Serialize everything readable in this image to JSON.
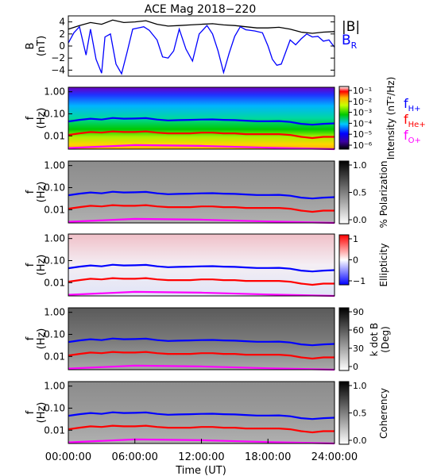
{
  "chart_data": {
    "type": "heatmap",
    "title": "ACE Mag 2018−220",
    "x": {
      "label": "Time (UT)",
      "range_hours": [
        0,
        24
      ],
      "ticks": [
        "00:00:00",
        "06:00:00",
        "12:00:00",
        "18:00:00",
        "24:00:00"
      ],
      "tick_hours": [
        0,
        6,
        12,
        18,
        24
      ]
    },
    "panels": [
      {
        "id": "b",
        "type": "line",
        "ylabel": [
          "B",
          "(nT)"
        ],
        "ylim": [
          -5,
          5
        ],
        "yticks": [
          "4",
          "2",
          "0",
          "−2",
          "−4"
        ],
        "ytick_values": [
          4,
          2,
          0,
          -2,
          -4
        ],
        "legend": [
          {
            "label": "|B|",
            "color": "#000000"
          },
          {
            "label": "B",
            "sub": "R",
            "color": "#0000ff"
          }
        ],
        "series": [
          {
            "name": "|B|",
            "color": "#000000",
            "points": [
              [
                0,
                2.8
              ],
              [
                1,
                3.4
              ],
              [
                2,
                3.9
              ],
              [
                3,
                3.6
              ],
              [
                4,
                4.3
              ],
              [
                5,
                3.9
              ],
              [
                6,
                4.0
              ],
              [
                7,
                4.2
              ],
              [
                8,
                3.6
              ],
              [
                9,
                3.3
              ],
              [
                10,
                3.4
              ],
              [
                11,
                3.5
              ],
              [
                12,
                3.6
              ],
              [
                13,
                3.7
              ],
              [
                14,
                3.5
              ],
              [
                15,
                3.4
              ],
              [
                16,
                3.2
              ],
              [
                17,
                3.0
              ],
              [
                18,
                3.0
              ],
              [
                19,
                3.1
              ],
              [
                20,
                2.8
              ],
              [
                21,
                2.3
              ],
              [
                22,
                2.1
              ],
              [
                23,
                2.3
              ],
              [
                24,
                2.4
              ]
            ]
          },
          {
            "name": "B_R",
            "color": "#0000ff",
            "points": [
              [
                0,
                0.5
              ],
              [
                0.5,
                2.2
              ],
              [
                1,
                3.2
              ],
              [
                1.6,
                -1.5
              ],
              [
                2,
                2.8
              ],
              [
                2.5,
                -2.2
              ],
              [
                3,
                -4.5
              ],
              [
                3.3,
                1.5
              ],
              [
                3.8,
                2.0
              ],
              [
                4.3,
                -3.0
              ],
              [
                4.8,
                -4.6
              ],
              [
                5.3,
                -1.0
              ],
              [
                5.8,
                2.8
              ],
              [
                6.3,
                3.0
              ],
              [
                6.8,
                3.2
              ],
              [
                7.3,
                2.6
              ],
              [
                8,
                1.0
              ],
              [
                8.5,
                -1.8
              ],
              [
                9,
                -2.0
              ],
              [
                9.5,
                -0.8
              ],
              [
                10,
                2.8
              ],
              [
                10.6,
                -0.5
              ],
              [
                11.2,
                -2.5
              ],
              [
                11.8,
                2.0
              ],
              [
                12.5,
                3.4
              ],
              [
                13,
                2.0
              ],
              [
                13.5,
                -0.8
              ],
              [
                14,
                -4.4
              ],
              [
                14.5,
                -1.2
              ],
              [
                15,
                1.6
              ],
              [
                15.5,
                3.2
              ],
              [
                16,
                2.7
              ],
              [
                16.8,
                2.5
              ],
              [
                17.5,
                2.2
              ],
              [
                18,
                0.0
              ],
              [
                18.4,
                -2.2
              ],
              [
                18.8,
                -3.2
              ],
              [
                19.2,
                -3.0
              ],
              [
                19.6,
                -1.0
              ],
              [
                20,
                1.0
              ],
              [
                20.5,
                0.2
              ],
              [
                21,
                1.2
              ],
              [
                21.5,
                2.0
              ],
              [
                22,
                1.5
              ],
              [
                22.5,
                1.6
              ],
              [
                23,
                0.8
              ],
              [
                23.5,
                1.0
              ],
              [
                24,
                -0.2
              ]
            ]
          }
        ]
      },
      {
        "id": "intensity",
        "type": "heatmap",
        "ylabel": [
          "f",
          "(Hz)"
        ],
        "yticks": [
          "1.00",
          "0.10",
          "0.01"
        ],
        "colorbar_label": "Intensity (nT²/Hz)",
        "colorbar_ticks": [
          "10⁻¹",
          "10⁻²",
          "10⁻³",
          "10⁻⁴",
          "10⁻⁵",
          "10⁻⁶"
        ],
        "legend": [
          {
            "label": "f",
            "sub": "H+",
            "color": "#0000ff"
          },
          {
            "label": "f",
            "sub": "He+",
            "color": "#ff0000"
          },
          {
            "label": "f",
            "sub": "O+",
            "color": "#ff00ff"
          }
        ]
      },
      {
        "id": "polarization",
        "type": "heatmap",
        "ylabel": [
          "f",
          "(Hz)"
        ],
        "yticks": [
          "1.00",
          "0.10",
          "0.01"
        ],
        "colorbar_label": "% Polarization",
        "colorbar_ticks": [
          "1.0",
          "0.5",
          "0.0"
        ]
      },
      {
        "id": "ellipticity",
        "type": "heatmap",
        "ylabel": [
          "f",
          "(Hz)"
        ],
        "yticks": [
          "1.00",
          "0.10",
          "0.01"
        ],
        "colorbar_label": "Ellipticity",
        "colorbar_ticks": [
          "1",
          "0",
          "−1"
        ]
      },
      {
        "id": "kdotb",
        "type": "heatmap",
        "ylabel": [
          "f",
          "(Hz)"
        ],
        "yticks": [
          "1.00",
          "0.10",
          "0.01"
        ],
        "colorbar_label": "k dot B (Deg)",
        "colorbar_label_lines": [
          "k dot B",
          "(Deg)"
        ],
        "colorbar_ticks": [
          "90",
          "60",
          "30",
          "0"
        ]
      },
      {
        "id": "coherency",
        "type": "heatmap",
        "ylabel": [
          "f",
          "(Hz)"
        ],
        "yticks": [
          "1.00",
          "0.10",
          "0.01"
        ],
        "colorbar_label": "Coherency",
        "colorbar_ticks": [
          "1.0",
          "0.5",
          "0.0"
        ]
      }
    ],
    "gyrofrequency_hz": {
      "H+": [
        [
          0,
          0.045
        ],
        [
          1,
          0.053
        ],
        [
          2,
          0.06
        ],
        [
          3,
          0.055
        ],
        [
          4,
          0.065
        ],
        [
          5,
          0.06
        ],
        [
          6,
          0.061
        ],
        [
          7,
          0.064
        ],
        [
          8,
          0.055
        ],
        [
          9,
          0.05
        ],
        [
          10,
          0.052
        ],
        [
          11,
          0.053
        ],
        [
          12,
          0.055
        ],
        [
          13,
          0.056
        ],
        [
          14,
          0.053
        ],
        [
          15,
          0.052
        ],
        [
          16,
          0.049
        ],
        [
          17,
          0.046
        ],
        [
          18,
          0.046
        ],
        [
          19,
          0.047
        ],
        [
          20,
          0.043
        ],
        [
          21,
          0.035
        ],
        [
          22,
          0.032
        ],
        [
          23,
          0.035
        ],
        [
          24,
          0.037
        ]
      ],
      "He+": [
        [
          0,
          0.011
        ],
        [
          1,
          0.013
        ],
        [
          2,
          0.015
        ],
        [
          3,
          0.014
        ],
        [
          4,
          0.016
        ],
        [
          5,
          0.015
        ],
        [
          6,
          0.015
        ],
        [
          7,
          0.016
        ],
        [
          8,
          0.014
        ],
        [
          9,
          0.013
        ],
        [
          10,
          0.013
        ],
        [
          11,
          0.013
        ],
        [
          12,
          0.014
        ],
        [
          13,
          0.014
        ],
        [
          14,
          0.013
        ],
        [
          15,
          0.013
        ],
        [
          16,
          0.012
        ],
        [
          17,
          0.012
        ],
        [
          18,
          0.012
        ],
        [
          19,
          0.012
        ],
        [
          20,
          0.011
        ],
        [
          21,
          0.009
        ],
        [
          22,
          0.008
        ],
        [
          23,
          0.009
        ],
        [
          24,
          0.009
        ]
      ],
      "O+": [
        [
          0,
          0.0028
        ],
        [
          6,
          0.0038
        ],
        [
          12,
          0.0035
        ],
        [
          18,
          0.0029
        ],
        [
          24,
          0.0023
        ]
      ]
    },
    "grid": false,
    "legend_position": "right"
  }
}
